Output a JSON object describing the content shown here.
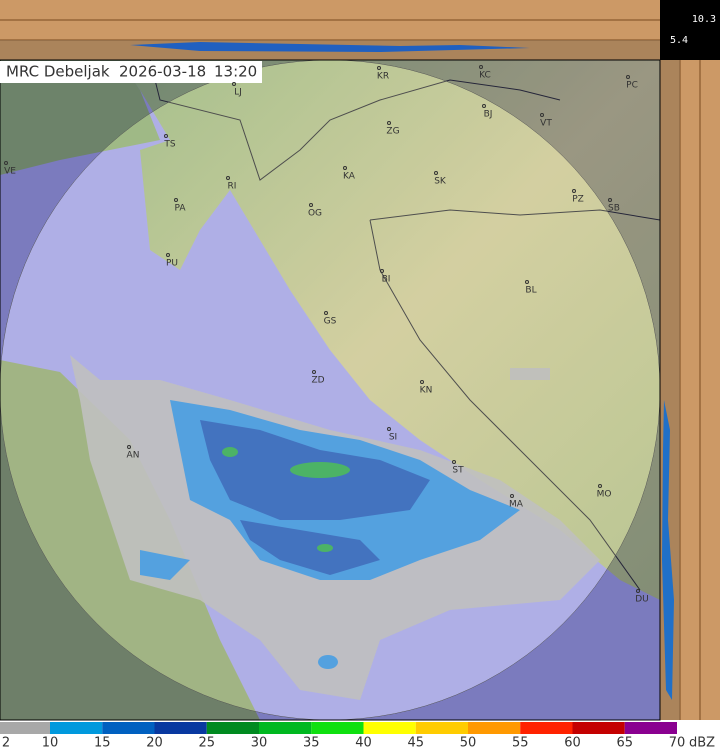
{
  "header": {
    "station": "MRC Debeljak",
    "date": "2026-03-18",
    "time": "13:20"
  },
  "scale": {
    "max": "10.3",
    "min": "5.4"
  },
  "cities": [
    "LJ",
    "KR",
    "KC",
    "PC",
    "ZG",
    "BJ",
    "VT",
    "TS",
    "VE",
    "KA",
    "SK",
    "RI",
    "PZ",
    "PA",
    "OG",
    "SB",
    "PU",
    "BI",
    "BL",
    "GS",
    "ZD",
    "KN",
    "SI",
    "AN",
    "ST",
    "MA",
    "MO",
    "DU"
  ],
  "legend": {
    "labels": [
      "2",
      "10",
      "15",
      "20",
      "25",
      "30",
      "35",
      "40",
      "45",
      "50",
      "55",
      "60",
      "65",
      "70"
    ],
    "unit": "dBZ",
    "colors": [
      "#a8a8a8",
      "#0099dd",
      "#0060c0",
      "#0838a0",
      "#008a20",
      "#00b820",
      "#10e010",
      "#ffff00",
      "#ffcc00",
      "#ff9900",
      "#ff2200",
      "#c40000",
      "#8a0090"
    ]
  }
}
